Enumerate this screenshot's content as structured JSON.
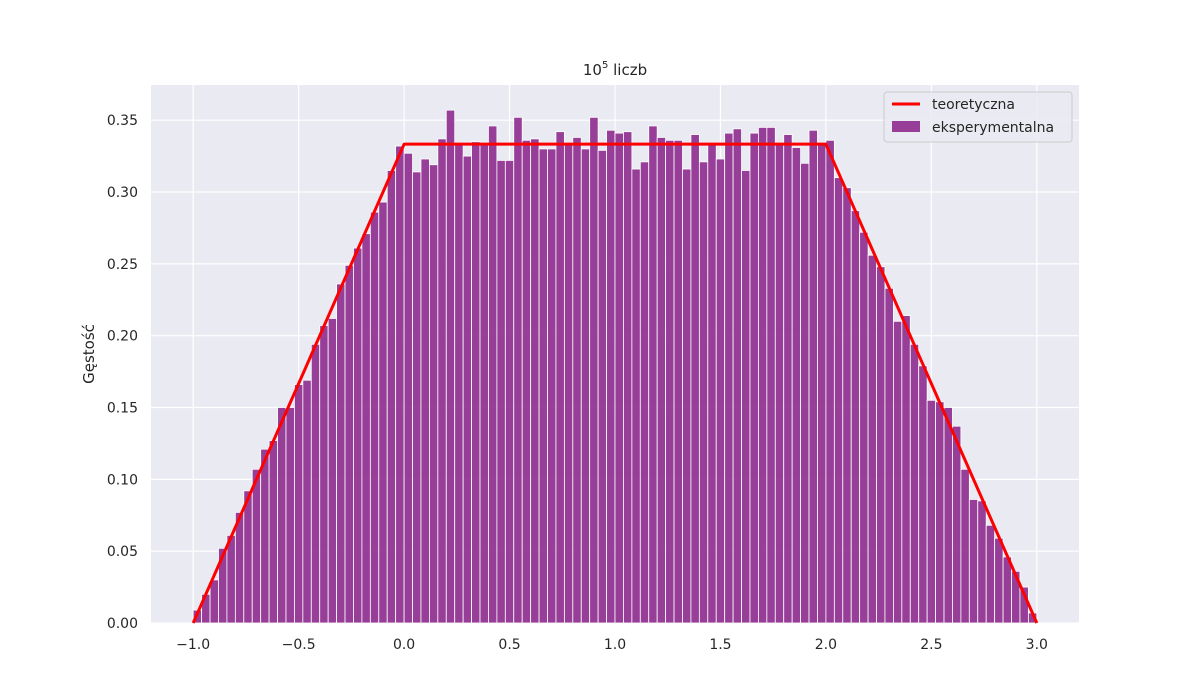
{
  "chart_data": {
    "type": "bar",
    "title_main": "10",
    "title_sup": "5",
    "title_rest": " liczb",
    "xlabel": "",
    "ylabel": "Gęstość",
    "xlim": [
      -1.2,
      3.2
    ],
    "ylim": [
      0.0,
      0.35
    ],
    "xticks": [
      -1.0,
      -0.5,
      0.0,
      0.5,
      1.0,
      1.5,
      2.0,
      2.5,
      3.0
    ],
    "xtick_labels": [
      "−1.0",
      "−0.5",
      "0.0",
      "0.5",
      "1.0",
      "1.5",
      "2.0",
      "2.5",
      "3.0"
    ],
    "yticks": [
      0.0,
      0.05,
      0.1,
      0.15,
      0.2,
      0.25,
      0.3,
      0.35
    ],
    "ytick_labels": [
      "0.00",
      "0.05",
      "0.10",
      "0.15",
      "0.20",
      "0.25",
      "0.30",
      "0.35"
    ],
    "grid": true,
    "legend_position": "top-right",
    "colors": {
      "background": "#eaeaf2",
      "grid": "#ffffff",
      "bars": "#8e2c8e",
      "theory_line": "#ff0000"
    },
    "theory_line": {
      "name": "teoretyczna",
      "x": [
        -1.0,
        0.0,
        2.0,
        3.0
      ],
      "y": [
        0.0,
        0.3333,
        0.3333,
        0.0
      ]
    },
    "histogram": {
      "name": "eksperymentalna",
      "bin_start": -1.0,
      "bin_width": 0.04,
      "values": [
        0.009,
        0.02,
        0.03,
        0.052,
        0.061,
        0.077,
        0.092,
        0.107,
        0.121,
        0.127,
        0.15,
        0.15,
        0.166,
        0.169,
        0.194,
        0.207,
        0.212,
        0.236,
        0.249,
        0.261,
        0.271,
        0.286,
        0.293,
        0.315,
        0.332,
        0.327,
        0.314,
        0.323,
        0.319,
        0.337,
        0.357,
        0.334,
        0.325,
        0.335,
        0.334,
        0.346,
        0.322,
        0.322,
        0.352,
        0.336,
        0.337,
        0.33,
        0.33,
        0.342,
        0.334,
        0.338,
        0.33,
        0.352,
        0.329,
        0.343,
        0.341,
        0.342,
        0.316,
        0.321,
        0.346,
        0.338,
        0.336,
        0.336,
        0.316,
        0.34,
        0.321,
        0.333,
        0.323,
        0.341,
        0.344,
        0.315,
        0.341,
        0.345,
        0.345,
        0.333,
        0.34,
        0.331,
        0.32,
        0.343,
        0.333,
        0.336,
        0.31,
        0.303,
        0.287,
        0.272,
        0.256,
        0.248,
        0.233,
        0.21,
        0.214,
        0.194,
        0.179,
        0.155,
        0.154,
        0.15,
        0.137,
        0.107,
        0.086,
        0.085,
        0.068,
        0.059,
        0.046,
        0.036,
        0.025,
        0.007
      ]
    }
  }
}
